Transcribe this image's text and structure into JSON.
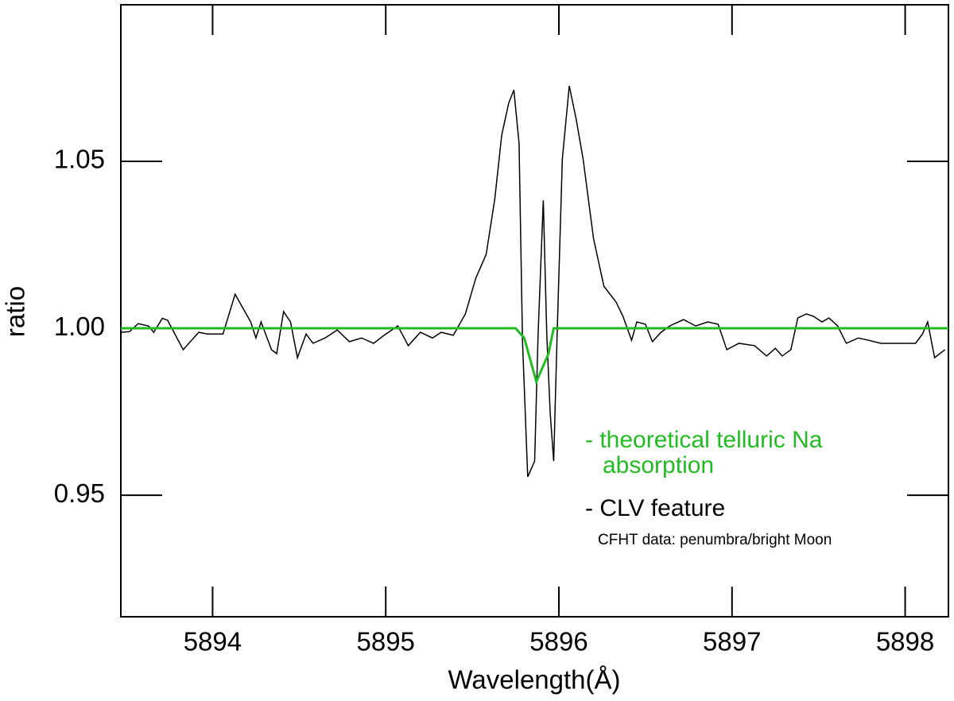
{
  "chart_data": {
    "type": "line",
    "xlabel": "Wavelength(Å)",
    "ylabel": "ratio",
    "xlim": [
      5893.47,
      5898.25
    ],
    "xticks": [
      5894,
      5895,
      5896,
      5897,
      5898
    ],
    "ylim": [
      0.9136,
      1.0969
    ],
    "yticks": [
      0.95,
      {
        "value": 1.0,
        "label": "1.00"
      },
      1.05
    ],
    "series": [
      {
        "color": "#000000",
        "x": [
          5893.47,
          5893.52,
          5893.57,
          5893.63,
          5893.66,
          5893.71,
          5893.74,
          5893.83,
          5893.92,
          5893.97,
          5894.06,
          5894.13,
          5894.22,
          5894.25,
          5894.28,
          5894.34,
          5894.37,
          5894.41,
          5894.45,
          5894.49,
          5894.54,
          5894.58,
          5894.65,
          5894.72,
          5894.79,
          5894.86,
          5894.93,
          5894.99,
          5895.07,
          5895.13,
          5895.2,
          5895.27,
          5895.32,
          5895.39,
          5895.46,
          5895.52,
          5895.58,
          5895.63,
          5895.67,
          5895.71,
          5895.74,
          5895.77,
          5895.79,
          5895.82,
          5895.86,
          5895.88,
          5895.91,
          5895.93,
          5895.95,
          5895.97,
          5895.99,
          5896.02,
          5896.06,
          5896.1,
          5896.14,
          5896.2,
          5896.26,
          5896.33,
          5896.37,
          5896.42,
          5896.45,
          5896.5,
          5896.54,
          5896.59,
          5896.64,
          5896.72,
          5896.79,
          5896.86,
          5896.92,
          5896.97,
          5897.04,
          5897.13,
          5897.2,
          5897.25,
          5897.29,
          5897.34,
          5897.38,
          5897.43,
          5897.47,
          5897.52,
          5897.56,
          5897.61,
          5897.66,
          5897.73,
          5897.79,
          5897.86,
          5897.93,
          5897.99,
          5898.06,
          5898.1,
          5898.13,
          5898.17,
          5898.23
        ],
        "values": [
          0.9988,
          0.999,
          1.0014,
          1.0007,
          0.9988,
          1.003,
          1.0024,
          0.9936,
          0.9988,
          0.9983,
          0.9983,
          1.0102,
          1.0019,
          0.9971,
          1.0019,
          0.9936,
          0.9924,
          1.005,
          1.0019,
          0.9912,
          0.9983,
          0.9955,
          0.9971,
          0.9995,
          0.996,
          0.9971,
          0.9955,
          0.9979,
          1.0007,
          0.9948,
          0.9988,
          0.9971,
          0.9988,
          0.9979,
          1.0043,
          1.015,
          1.0221,
          1.0388,
          1.0579,
          1.0674,
          1.0714,
          1.0555,
          0.996,
          0.9555,
          0.9602,
          0.9983,
          1.0383,
          0.9983,
          0.9745,
          0.9602,
          0.9983,
          1.0507,
          1.0726,
          1.0626,
          1.0507,
          1.0269,
          1.0126,
          1.0079,
          1.0036,
          0.9964,
          1.0019,
          1.0012,
          0.996,
          0.9988,
          1.0007,
          1.0026,
          1.0007,
          1.0019,
          1.0012,
          0.9936,
          0.9955,
          0.9948,
          0.9917,
          0.994,
          0.9917,
          0.9936,
          1.0031,
          1.0043,
          1.0036,
          1.0019,
          1.0031,
          1.0007,
          0.9955,
          0.9971,
          0.9964,
          0.9955,
          0.9955,
          0.9955,
          0.9955,
          0.9983,
          1.0019,
          0.9912,
          0.9936
        ]
      },
      {
        "color": "#22bb22",
        "x": [
          5893.47,
          5895.75,
          5895.8,
          5895.87,
          5895.94,
          5895.97,
          5898.25
        ],
        "values": [
          1.0,
          1.0,
          0.9971,
          0.984,
          0.9924,
          1.0,
          1.0
        ]
      }
    ],
    "annotations": [
      {
        "lines": [
          "- theoretical telluric Na",
          "absorption"
        ],
        "color": "#22bb22"
      },
      {
        "lines": [
          "- CLV feature"
        ],
        "color": "#000000"
      },
      {
        "lines": [
          "CFHT data: penumbra/bright Moon"
        ],
        "color": "#000000"
      }
    ]
  }
}
